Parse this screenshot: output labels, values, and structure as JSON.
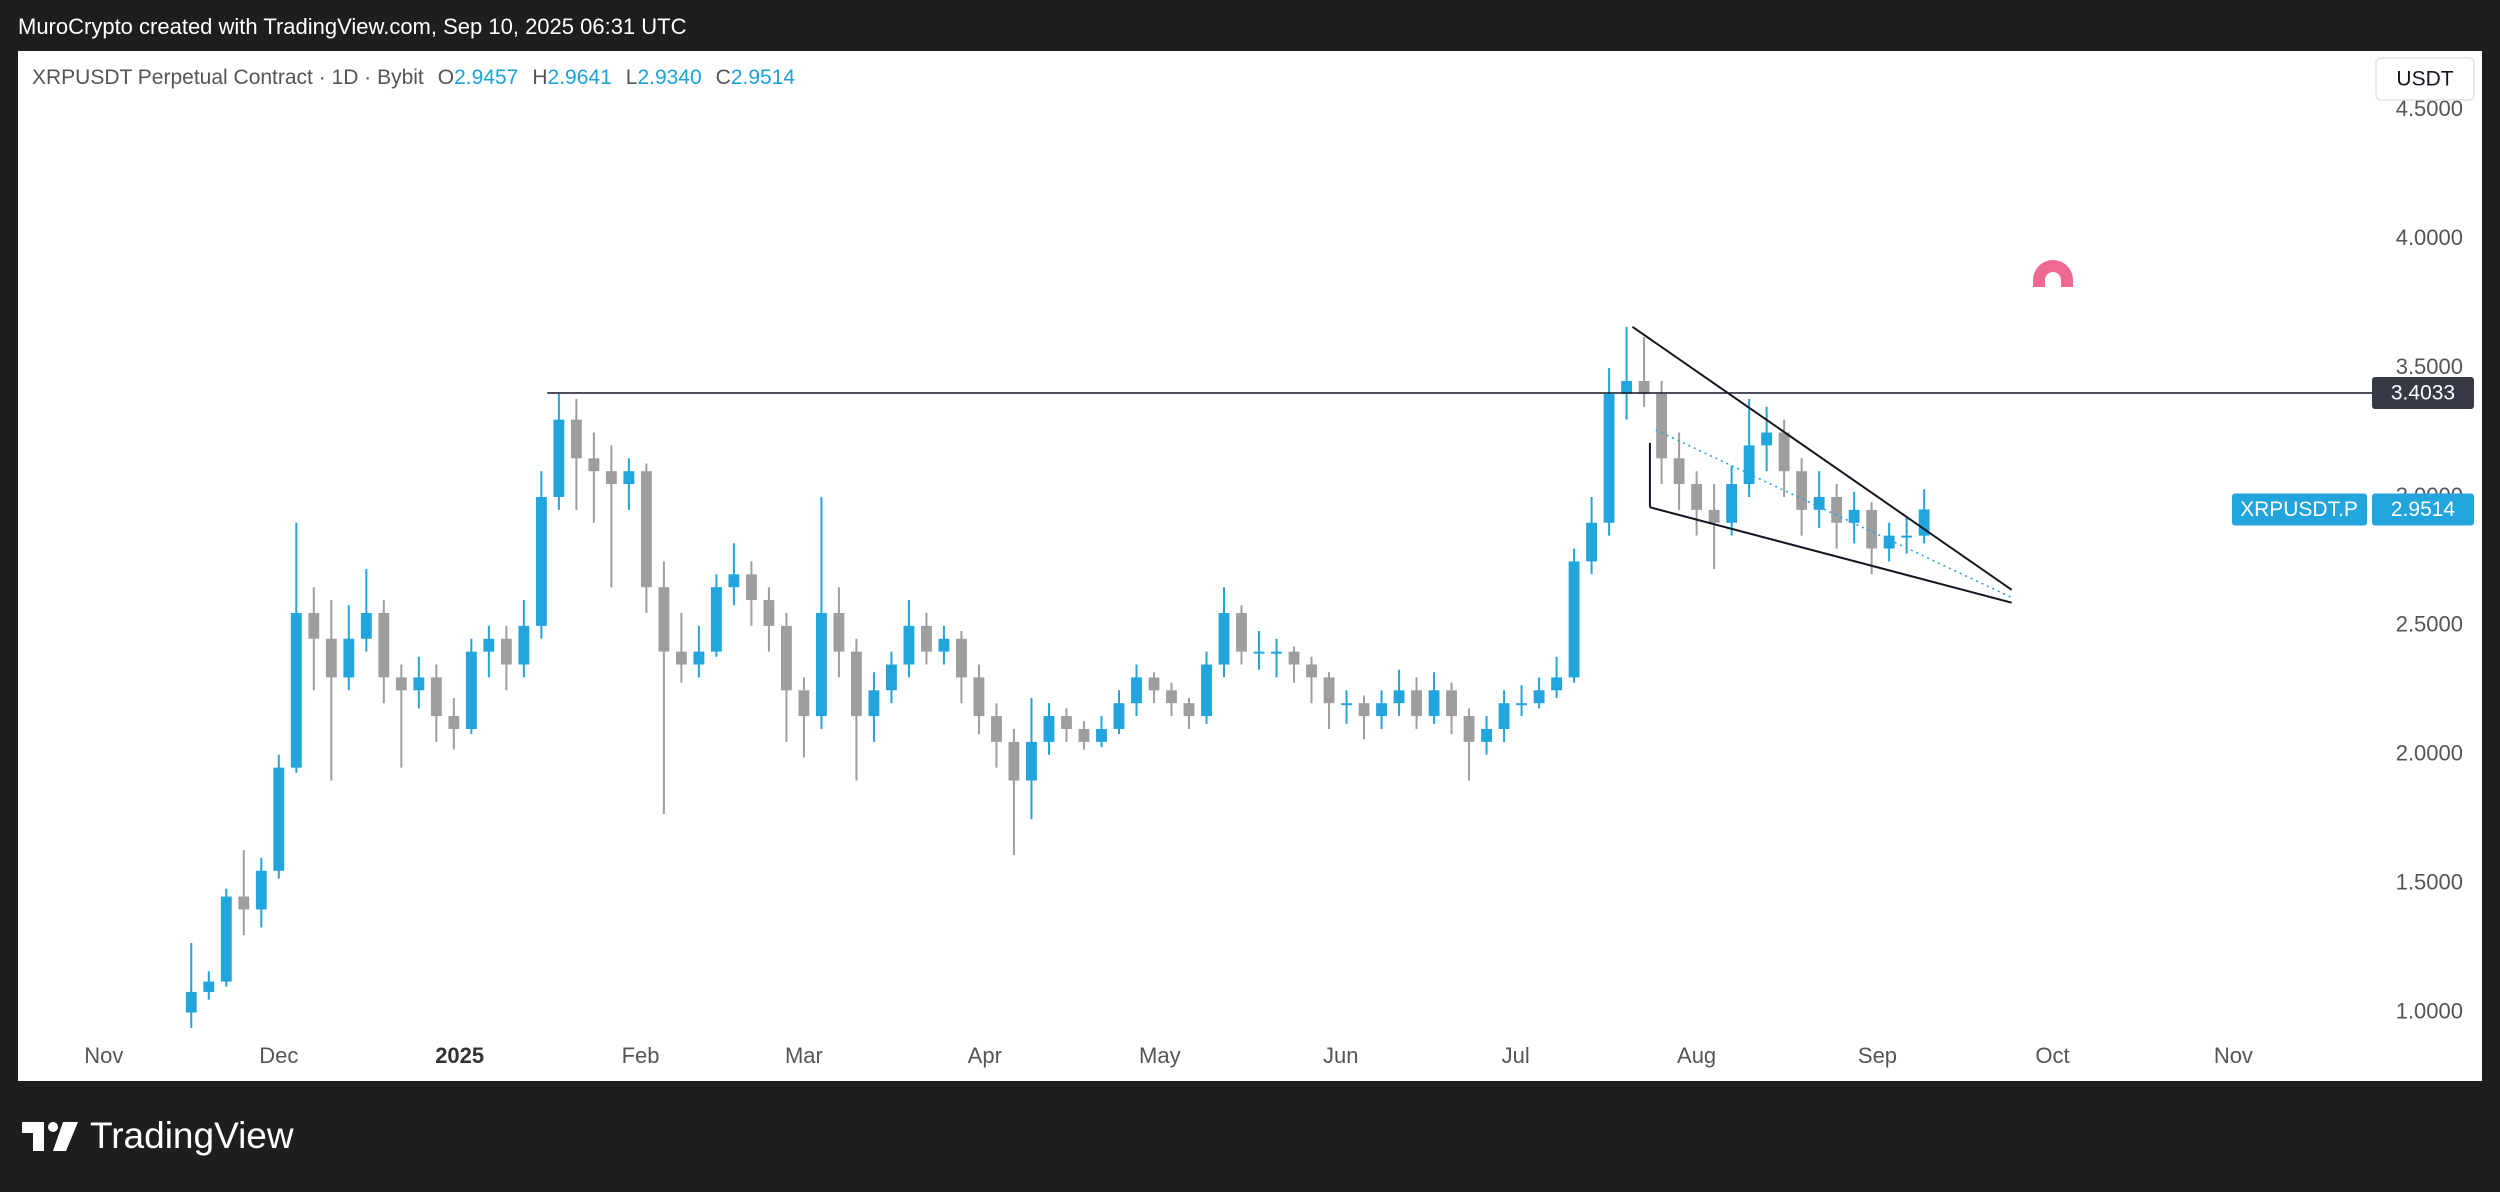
{
  "header": {
    "caption": "MuroCrypto created with TradingView.com, Sep 10, 2025 06:31 UTC",
    "symbol": "XRPUSDT Perpetual Contract · 1D · Bybit",
    "legend": [
      {
        "key": "O",
        "text": "2.9457"
      },
      {
        "key": "H",
        "text": "2.9641"
      },
      {
        "key": "L",
        "text": "2.9340"
      },
      {
        "key": "C",
        "text": "2.9514"
      }
    ],
    "currency": "USDT"
  },
  "footer": {
    "brand": "TradingView"
  },
  "chart_data": {
    "type": "candlestick",
    "ticker": "XRPUSDT.P",
    "up_color": "#22a4dc",
    "down_color": "#9e9e9e",
    "grid": false,
    "xlim": [
      -14.7,
      386.7
    ],
    "xticks": [
      {
        "value": 0,
        "label": "Nov"
      },
      {
        "value": 30,
        "label": "Dec"
      },
      {
        "value": 61,
        "label": "2025",
        "bold": true
      },
      {
        "value": 92,
        "label": "Feb"
      },
      {
        "value": 120,
        "label": "Mar"
      },
      {
        "value": 151,
        "label": "Apr"
      },
      {
        "value": 181,
        "label": "May"
      },
      {
        "value": 212,
        "label": "Jun"
      },
      {
        "value": 242,
        "label": "Jul"
      },
      {
        "value": 273,
        "label": "Aug"
      },
      {
        "value": 304,
        "label": "Sep"
      },
      {
        "value": 334,
        "label": "Oct"
      },
      {
        "value": 365,
        "label": "Nov"
      }
    ],
    "ylim": [
      0.909,
      4.73
    ],
    "yticks": [
      {
        "value": 1,
        "label": "1.0000"
      },
      {
        "value": 1.5,
        "label": "1.5000"
      },
      {
        "value": 2,
        "label": "2.0000"
      },
      {
        "value": 2.5,
        "label": "2.5000"
      },
      {
        "value": 3,
        "label": "3.0000"
      },
      {
        "value": 3.5,
        "label": "3.5000"
      },
      {
        "value": 4,
        "label": "4.0000"
      },
      {
        "value": 4.5,
        "label": "4.5000"
      }
    ],
    "x": [
      15,
      18,
      21,
      24,
      27,
      30,
      33,
      36,
      39,
      42,
      45,
      48,
      51,
      54,
      57,
      60,
      63,
      66,
      69,
      72,
      75,
      78,
      81,
      84,
      87,
      90,
      93,
      96,
      99,
      102,
      105,
      108,
      111,
      114,
      117,
      120,
      123,
      126,
      129,
      132,
      135,
      138,
      141,
      144,
      147,
      150,
      153,
      156,
      159,
      162,
      165,
      168,
      171,
      174,
      177,
      180,
      183,
      186,
      189,
      192,
      195,
      198,
      201,
      204,
      207,
      210,
      213,
      216,
      219,
      222,
      225,
      228,
      231,
      234,
      237,
      240,
      243,
      246,
      249,
      252,
      255,
      258,
      261,
      264,
      267,
      270,
      273,
      276,
      279,
      282,
      285,
      288,
      291,
      294,
      297,
      300,
      303,
      306,
      309,
      312
    ],
    "ohlc": [
      [
        1.0,
        1.27,
        0.94,
        1.08
      ],
      [
        1.08,
        1.16,
        1.05,
        1.12
      ],
      [
        1.12,
        1.48,
        1.1,
        1.45
      ],
      [
        1.45,
        1.63,
        1.3,
        1.4
      ],
      [
        1.4,
        1.6,
        1.33,
        1.55
      ],
      [
        1.55,
        2.0,
        1.52,
        1.95
      ],
      [
        1.95,
        2.9,
        1.93,
        2.55
      ],
      [
        2.55,
        2.65,
        2.25,
        2.45
      ],
      [
        2.45,
        2.6,
        1.9,
        2.3
      ],
      [
        2.3,
        2.58,
        2.25,
        2.45
      ],
      [
        2.45,
        2.72,
        2.4,
        2.55
      ],
      [
        2.55,
        2.6,
        2.2,
        2.3
      ],
      [
        2.3,
        2.35,
        1.95,
        2.25
      ],
      [
        2.25,
        2.38,
        2.18,
        2.3
      ],
      [
        2.3,
        2.35,
        2.05,
        2.15
      ],
      [
        2.15,
        2.22,
        2.02,
        2.1
      ],
      [
        2.1,
        2.45,
        2.08,
        2.4
      ],
      [
        2.4,
        2.5,
        2.3,
        2.45
      ],
      [
        2.45,
        2.5,
        2.25,
        2.35
      ],
      [
        2.35,
        2.6,
        2.3,
        2.5
      ],
      [
        2.5,
        3.1,
        2.45,
        3.0
      ],
      [
        3.0,
        3.4,
        2.95,
        3.3
      ],
      [
        3.3,
        3.38,
        2.95,
        3.15
      ],
      [
        3.15,
        3.25,
        2.9,
        3.1
      ],
      [
        3.1,
        3.2,
        2.65,
        3.05
      ],
      [
        3.05,
        3.15,
        2.95,
        3.1
      ],
      [
        3.1,
        3.13,
        2.55,
        2.65
      ],
      [
        2.65,
        2.75,
        1.77,
        2.4
      ],
      [
        2.4,
        2.55,
        2.28,
        2.35
      ],
      [
        2.35,
        2.5,
        2.3,
        2.4
      ],
      [
        2.4,
        2.7,
        2.38,
        2.65
      ],
      [
        2.65,
        2.82,
        2.58,
        2.7
      ],
      [
        2.7,
        2.75,
        2.5,
        2.6
      ],
      [
        2.6,
        2.65,
        2.4,
        2.5
      ],
      [
        2.5,
        2.55,
        2.05,
        2.25
      ],
      [
        2.25,
        2.3,
        1.99,
        2.15
      ],
      [
        2.15,
        3.0,
        2.1,
        2.55
      ],
      [
        2.55,
        2.65,
        2.3,
        2.4
      ],
      [
        2.4,
        2.45,
        1.9,
        2.15
      ],
      [
        2.15,
        2.32,
        2.05,
        2.25
      ],
      [
        2.25,
        2.4,
        2.2,
        2.35
      ],
      [
        2.35,
        2.6,
        2.3,
        2.5
      ],
      [
        2.5,
        2.55,
        2.35,
        2.4
      ],
      [
        2.4,
        2.5,
        2.35,
        2.45
      ],
      [
        2.45,
        2.48,
        2.2,
        2.3
      ],
      [
        2.3,
        2.35,
        2.08,
        2.15
      ],
      [
        2.15,
        2.2,
        1.95,
        2.05
      ],
      [
        2.05,
        2.1,
        1.61,
        1.9
      ],
      [
        1.9,
        2.22,
        1.75,
        2.05
      ],
      [
        2.05,
        2.2,
        2.0,
        2.15
      ],
      [
        2.15,
        2.18,
        2.05,
        2.1
      ],
      [
        2.1,
        2.13,
        2.02,
        2.05
      ],
      [
        2.05,
        2.15,
        2.03,
        2.1
      ],
      [
        2.1,
        2.25,
        2.08,
        2.2
      ],
      [
        2.2,
        2.35,
        2.15,
        2.3
      ],
      [
        2.3,
        2.32,
        2.2,
        2.25
      ],
      [
        2.25,
        2.28,
        2.15,
        2.2
      ],
      [
        2.2,
        2.22,
        2.1,
        2.15
      ],
      [
        2.15,
        2.4,
        2.12,
        2.35
      ],
      [
        2.35,
        2.65,
        2.3,
        2.55
      ],
      [
        2.55,
        2.58,
        2.35,
        2.4
      ],
      [
        2.4,
        2.48,
        2.33,
        2.4
      ],
      [
        2.4,
        2.45,
        2.3,
        2.4
      ],
      [
        2.4,
        2.42,
        2.28,
        2.35
      ],
      [
        2.35,
        2.38,
        2.2,
        2.3
      ],
      [
        2.3,
        2.32,
        2.1,
        2.2
      ],
      [
        2.2,
        2.25,
        2.12,
        2.2
      ],
      [
        2.2,
        2.23,
        2.06,
        2.15
      ],
      [
        2.15,
        2.25,
        2.1,
        2.2
      ],
      [
        2.2,
        2.33,
        2.15,
        2.25
      ],
      [
        2.25,
        2.3,
        2.1,
        2.15
      ],
      [
        2.15,
        2.32,
        2.12,
        2.25
      ],
      [
        2.25,
        2.28,
        2.08,
        2.15
      ],
      [
        2.15,
        2.18,
        1.9,
        2.05
      ],
      [
        2.05,
        2.15,
        2.0,
        2.1
      ],
      [
        2.1,
        2.25,
        2.05,
        2.2
      ],
      [
        2.2,
        2.27,
        2.15,
        2.2
      ],
      [
        2.2,
        2.3,
        2.18,
        2.25
      ],
      [
        2.25,
        2.38,
        2.22,
        2.3
      ],
      [
        2.3,
        2.8,
        2.28,
        2.75
      ],
      [
        2.75,
        3.0,
        2.7,
        2.9
      ],
      [
        2.9,
        3.5,
        2.85,
        3.4
      ],
      [
        3.4,
        3.66,
        3.3,
        3.45
      ],
      [
        3.45,
        3.62,
        3.35,
        3.4
      ],
      [
        3.4,
        3.45,
        3.05,
        3.15
      ],
      [
        3.15,
        3.25,
        2.95,
        3.05
      ],
      [
        3.05,
        3.1,
        2.85,
        2.95
      ],
      [
        2.95,
        3.05,
        2.72,
        2.9
      ],
      [
        2.9,
        3.12,
        2.85,
        3.05
      ],
      [
        3.05,
        3.38,
        3.0,
        3.2
      ],
      [
        3.2,
        3.35,
        3.1,
        3.25
      ],
      [
        3.25,
        3.3,
        3.0,
        3.1
      ],
      [
        3.1,
        3.15,
        2.85,
        2.95
      ],
      [
        2.95,
        3.1,
        2.88,
        3.0
      ],
      [
        3.0,
        3.05,
        2.8,
        2.9
      ],
      [
        2.9,
        3.02,
        2.82,
        2.95
      ],
      [
        2.95,
        2.98,
        2.7,
        2.8
      ],
      [
        2.8,
        2.9,
        2.75,
        2.85
      ],
      [
        2.85,
        2.92,
        2.78,
        2.85
      ],
      [
        2.85,
        3.03,
        2.82,
        2.9514
      ]
    ],
    "hline": {
      "value": 3.4033,
      "start": 76
    },
    "drawings": [
      {
        "x": [
          262,
          327
        ],
        "y": [
          3.66,
          2.64
        ],
        "color": "#131722",
        "dashed": false
      },
      {
        "x": [
          265,
          327
        ],
        "y": [
          2.96,
          2.59
        ],
        "color": "#131722",
        "dashed": false
      },
      {
        "x": [
          265,
          265
        ],
        "y": [
          3.21,
          2.96
        ],
        "color": "#131722",
        "dashed": false
      },
      {
        "x": [
          266,
          327
        ],
        "y": [
          3.26,
          2.61
        ],
        "color": "#22a4dc",
        "dashed": true
      }
    ]
  }
}
